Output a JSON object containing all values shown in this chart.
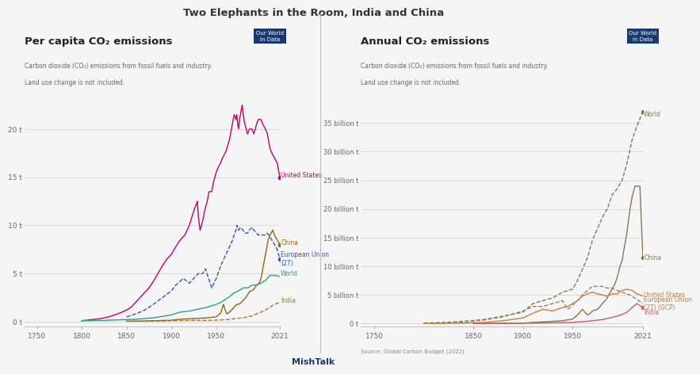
{
  "title": "Two Elephants in the Room, India and China",
  "title_color": "#333333",
  "background_color": "#f5f5f5",
  "source_text": "Source: Global Carbon Budget (2022)",
  "credit_text": "MishTalk",
  "left_panel": {
    "title": "Per capita CO₂ emissions",
    "subtitle1": "Carbon dioxide (CO₂) emissions from fossil fuels and industry.",
    "subtitle2": "Land use change is not included.",
    "ylabel_ticks": [
      "0 t",
      "5 t",
      "10 t",
      "15 t",
      "20 t"
    ],
    "ytick_vals": [
      0,
      5,
      10,
      15,
      20
    ],
    "ylim": [
      -0.5,
      23
    ],
    "xtick_vals": [
      1750,
      1800,
      1850,
      1900,
      1950,
      2021
    ],
    "xlim": [
      1736,
      2021
    ],
    "series": {
      "United States": {
        "color": "#c0006a",
        "linestyle": "solid",
        "linewidth": 1.0,
        "years": [
          1800,
          1810,
          1820,
          1830,
          1840,
          1850,
          1855,
          1860,
          1865,
          1870,
          1875,
          1880,
          1885,
          1890,
          1895,
          1900,
          1905,
          1910,
          1915,
          1920,
          1925,
          1926,
          1927,
          1928,
          1929,
          1930,
          1932,
          1935,
          1937,
          1940,
          1942,
          1945,
          1947,
          1950,
          1952,
          1955,
          1957,
          1960,
          1962,
          1965,
          1967,
          1970,
          1971,
          1972,
          1973,
          1974,
          1975,
          1976,
          1977,
          1978,
          1979,
          1980,
          1982,
          1985,
          1987,
          1990,
          1992,
          1995,
          1997,
          2000,
          2002,
          2005,
          2007,
          2010,
          2012,
          2015,
          2018,
          2021
        ],
        "values": [
          0.1,
          0.2,
          0.3,
          0.5,
          0.8,
          1.2,
          1.5,
          2.0,
          2.5,
          3.0,
          3.5,
          4.2,
          5.0,
          5.8,
          6.5,
          7.0,
          7.8,
          8.5,
          9.0,
          10.0,
          11.5,
          11.8,
          12.0,
          12.2,
          12.5,
          11.0,
          9.5,
          10.5,
          11.5,
          12.5,
          13.5,
          13.5,
          14.5,
          15.5,
          16.0,
          16.5,
          17.0,
          17.5,
          18.0,
          19.0,
          20.0,
          21.5,
          21.3,
          21.0,
          21.5,
          20.5,
          20.0,
          21.0,
          21.5,
          22.0,
          22.5,
          21.5,
          20.5,
          19.5,
          20.0,
          20.0,
          19.5,
          20.5,
          21.0,
          21.0,
          20.5,
          20.0,
          19.5,
          18.0,
          17.5,
          17.0,
          16.5,
          15.0
        ]
      },
      "China": {
        "color": "#8B6914",
        "linestyle": "solid",
        "linewidth": 1.0,
        "years": [
          1850,
          1860,
          1870,
          1880,
          1890,
          1900,
          1910,
          1920,
          1930,
          1940,
          1950,
          1955,
          1958,
          1960,
          1962,
          1965,
          1968,
          1970,
          1973,
          1975,
          1978,
          1980,
          1983,
          1985,
          1988,
          1990,
          1993,
          1995,
          1998,
          2000,
          2003,
          2005,
          2008,
          2010,
          2013,
          2015,
          2018,
          2021
        ],
        "values": [
          0.05,
          0.05,
          0.07,
          0.1,
          0.12,
          0.15,
          0.25,
          0.3,
          0.35,
          0.4,
          0.5,
          0.9,
          1.8,
          1.2,
          0.8,
          1.0,
          1.3,
          1.5,
          1.8,
          1.8,
          2.0,
          2.2,
          2.5,
          2.8,
          3.2,
          3.2,
          3.5,
          3.8,
          4.0,
          4.5,
          6.0,
          7.0,
          8.5,
          9.0,
          9.5,
          9.0,
          8.5,
          8.0
        ]
      },
      "European Union (27)": {
        "color": "#3355bb",
        "linestyle": "dashed",
        "linewidth": 1.0,
        "years": [
          1850,
          1860,
          1870,
          1880,
          1890,
          1900,
          1905,
          1910,
          1913,
          1920,
          1925,
          1930,
          1935,
          1938,
          1945,
          1950,
          1952,
          1955,
          1957,
          1960,
          1962,
          1965,
          1967,
          1970,
          1972,
          1973,
          1975,
          1977,
          1980,
          1982,
          1985,
          1987,
          1990,
          1992,
          1995,
          1997,
          2000,
          2002,
          2005,
          2007,
          2010,
          2012,
          2015,
          2018,
          2021
        ],
        "values": [
          0.5,
          0.8,
          1.2,
          1.8,
          2.5,
          3.2,
          3.8,
          4.2,
          4.5,
          4.0,
          4.5,
          5.0,
          5.0,
          5.5,
          3.5,
          4.5,
          5.0,
          5.8,
          6.2,
          6.8,
          7.2,
          7.8,
          8.2,
          9.0,
          9.5,
          10.0,
          9.5,
          9.8,
          9.5,
          9.2,
          9.2,
          9.5,
          9.8,
          9.5,
          9.2,
          9.0,
          9.0,
          9.0,
          9.0,
          9.2,
          8.8,
          8.5,
          8.0,
          7.5,
          6.5
        ]
      },
      "World": {
        "color": "#2a9d8f",
        "linestyle": "solid",
        "linewidth": 1.0,
        "years": [
          1800,
          1820,
          1840,
          1860,
          1880,
          1900,
          1910,
          1920,
          1930,
          1940,
          1950,
          1955,
          1960,
          1965,
          1970,
          1975,
          1980,
          1985,
          1990,
          1995,
          2000,
          2005,
          2010,
          2015,
          2021
        ],
        "values": [
          0.1,
          0.12,
          0.18,
          0.25,
          0.4,
          0.7,
          1.0,
          1.1,
          1.3,
          1.5,
          1.8,
          2.0,
          2.3,
          2.6,
          3.0,
          3.2,
          3.5,
          3.5,
          3.8,
          3.8,
          4.0,
          4.3,
          4.8,
          4.8,
          4.7
        ]
      },
      "India": {
        "color": "#a07830",
        "linestyle": "dashed",
        "linewidth": 1.0,
        "years": [
          1850,
          1870,
          1890,
          1900,
          1910,
          1920,
          1930,
          1940,
          1950,
          1955,
          1960,
          1965,
          1970,
          1975,
          1980,
          1985,
          1990,
          1995,
          2000,
          2005,
          2010,
          2015,
          2021
        ],
        "values": [
          0.05,
          0.05,
          0.07,
          0.1,
          0.12,
          0.13,
          0.13,
          0.13,
          0.15,
          0.18,
          0.22,
          0.25,
          0.3,
          0.35,
          0.4,
          0.5,
          0.6,
          0.8,
          1.0,
          1.2,
          1.5,
          1.8,
          2.0
        ]
      }
    }
  },
  "right_panel": {
    "title": "Annual CO₂ emissions",
    "subtitle1": "Carbon dioxide (CO₂) emissions from fossil fuels and industry.",
    "subtitle2": "Land use change is not included.",
    "ylabel_ticks": [
      "0 t",
      "5 billion t",
      "10 billion t",
      "15 billion t",
      "20 billion t",
      "25 billion t",
      "30 billion t",
      "35 billion t"
    ],
    "ytick_vals": [
      0,
      5,
      10,
      15,
      20,
      25,
      30,
      35
    ],
    "ylim": [
      -0.5,
      39
    ],
    "xtick_vals": [
      1750,
      1850,
      1900,
      1950,
      2021
    ],
    "xlim": [
      1736,
      2021
    ],
    "series": {
      "World": {
        "color": "#8B7355",
        "linestyle": "dashed",
        "linewidth": 1.0,
        "years": [
          1800,
          1820,
          1840,
          1860,
          1880,
          1900,
          1910,
          1920,
          1930,
          1940,
          1950,
          1955,
          1960,
          1965,
          1970,
          1975,
          1980,
          1985,
          1990,
          1995,
          2000,
          2005,
          2010,
          2015,
          2021
        ],
        "values": [
          0.1,
          0.2,
          0.4,
          0.7,
          1.3,
          2.0,
          3.5,
          4.0,
          4.5,
          5.5,
          6.0,
          7.5,
          9.5,
          11.5,
          14.5,
          16.5,
          18.5,
          20.0,
          22.5,
          23.5,
          25.0,
          28.0,
          32.0,
          34.5,
          37.0
        ]
      },
      "China": {
        "color": "#8B7355",
        "linestyle": "solid",
        "linewidth": 1.0,
        "years": [
          1850,
          1870,
          1890,
          1900,
          1910,
          1920,
          1930,
          1940,
          1950,
          1955,
          1960,
          1965,
          1968,
          1970,
          1975,
          1978,
          1980,
          1983,
          1985,
          1988,
          1990,
          1993,
          1995,
          1998,
          2000,
          2003,
          2005,
          2008,
          2010,
          2013,
          2015,
          2018,
          2021
        ],
        "values": [
          0.02,
          0.03,
          0.05,
          0.08,
          0.2,
          0.3,
          0.4,
          0.5,
          0.8,
          1.5,
          2.5,
          1.5,
          1.8,
          2.2,
          2.5,
          3.0,
          3.5,
          4.0,
          4.5,
          5.5,
          6.0,
          7.0,
          8.0,
          10.0,
          11.0,
          14.0,
          16.0,
          20.0,
          22.0,
          24.0,
          24.0,
          24.0,
          11.5
        ]
      },
      "United States": {
        "color": "#c08040",
        "linestyle": "solid",
        "linewidth": 1.0,
        "years": [
          1800,
          1820,
          1840,
          1860,
          1880,
          1900,
          1910,
          1920,
          1930,
          1940,
          1945,
          1950,
          1955,
          1960,
          1965,
          1970,
          1975,
          1980,
          1985,
          1990,
          1995,
          2000,
          2005,
          2010,
          2015,
          2021
        ],
        "values": [
          0.02,
          0.04,
          0.1,
          0.2,
          0.5,
          1.0,
          1.8,
          2.5,
          2.2,
          2.8,
          3.0,
          3.5,
          4.0,
          4.8,
          5.2,
          5.5,
          5.2,
          5.0,
          4.8,
          5.2,
          5.2,
          5.8,
          6.0,
          5.8,
          5.2,
          4.8
        ]
      },
      "European Union (27) (GCP)": {
        "color": "#9B8060",
        "linestyle": "dashed",
        "linewidth": 1.0,
        "years": [
          1800,
          1820,
          1840,
          1860,
          1880,
          1900,
          1910,
          1920,
          1930,
          1940,
          1945,
          1950,
          1955,
          1960,
          1965,
          1970,
          1975,
          1980,
          1985,
          1990,
          1995,
          2000,
          2005,
          2010,
          2015,
          2021
        ],
        "values": [
          0.05,
          0.1,
          0.3,
          0.6,
          1.2,
          2.2,
          3.0,
          3.0,
          3.5,
          4.0,
          2.5,
          3.2,
          4.0,
          5.0,
          5.8,
          6.5,
          6.5,
          6.5,
          6.2,
          6.2,
          5.8,
          5.5,
          5.2,
          4.8,
          4.2,
          3.5
        ]
      },
      "India": {
        "color": "#c06060",
        "linestyle": "solid",
        "linewidth": 1.0,
        "years": [
          1850,
          1870,
          1890,
          1900,
          1910,
          1920,
          1930,
          1940,
          1950,
          1955,
          1960,
          1965,
          1970,
          1975,
          1980,
          1985,
          1990,
          1995,
          2000,
          2005,
          2010,
          2015,
          2021
        ],
        "values": [
          0.02,
          0.03,
          0.05,
          0.08,
          0.1,
          0.12,
          0.15,
          0.18,
          0.2,
          0.28,
          0.35,
          0.4,
          0.5,
          0.6,
          0.7,
          0.9,
          1.1,
          1.3,
          1.6,
          2.0,
          2.8,
          3.5,
          2.8
        ]
      }
    }
  },
  "owid_box_color": "#1a3a6b",
  "left_labels": [
    {
      "text": "United States",
      "y": 15.2,
      "color": "#c0006a"
    },
    {
      "text": "China",
      "y": 8.2,
      "color": "#8B6914"
    },
    {
      "text": "European Union\n(27)",
      "y": 6.5,
      "color": "#3355bb"
    },
    {
      "text": "World",
      "y": 5.0,
      "color": "#2a9d8f"
    },
    {
      "text": "India",
      "y": 2.2,
      "color": "#a07830"
    }
  ],
  "right_labels": [
    {
      "text": "World",
      "y": 36.5,
      "color": "#8B7355"
    },
    {
      "text": "China",
      "y": 11.5,
      "color": "#8B7355"
    },
    {
      "text": "United States",
      "y": 5.0,
      "color": "#c08040"
    },
    {
      "text": "European Union\n(27) (GCP)",
      "y": 3.5,
      "color": "#9B8060"
    },
    {
      "text": "India",
      "y": 2.0,
      "color": "#c06060"
    }
  ]
}
